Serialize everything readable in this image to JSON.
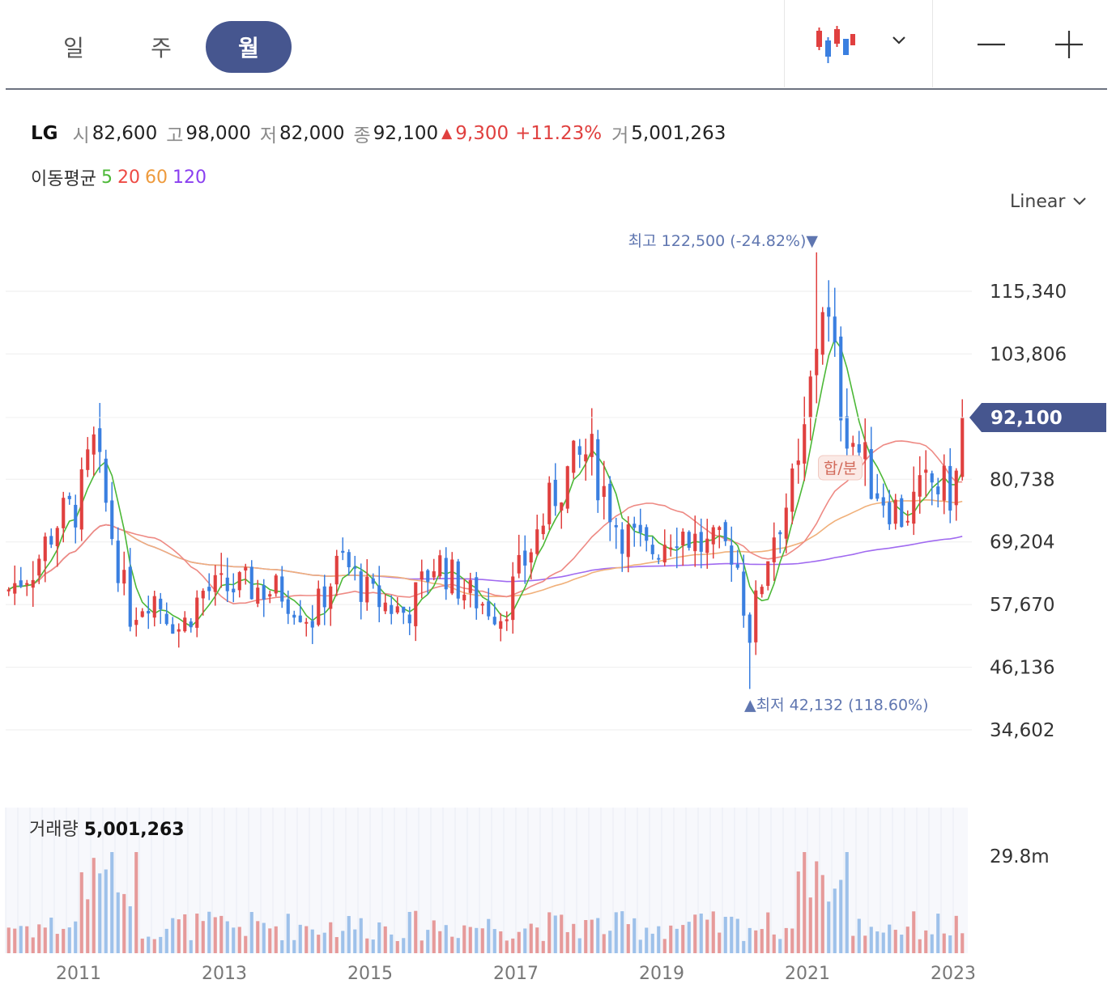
{
  "toolbar": {
    "tabs": [
      {
        "label": "일",
        "active": false
      },
      {
        "label": "주",
        "active": false
      },
      {
        "label": "월",
        "active": true
      }
    ],
    "chart_type_icon": "candlestick-icon",
    "zoom_out_icon": "minus-icon",
    "zoom_in_icon": "plus-icon"
  },
  "quote": {
    "name": "LG",
    "open_label": "시",
    "open": "82,600",
    "high_label": "고",
    "high": "98,000",
    "low_label": "저",
    "low": "82,000",
    "close_label": "종",
    "close": "92,100",
    "change_arrow": "▲",
    "change": "9,300",
    "change_pct": "+11.23%",
    "volume_label": "거",
    "volume": "5,001,263"
  },
  "moving_average": {
    "label": "이동평균",
    "periods": [
      {
        "label": "5",
        "color": "#4cb837"
      },
      {
        "label": "20",
        "color": "#ee4a44"
      },
      {
        "label": "60",
        "color": "#ee9a3c"
      },
      {
        "label": "120",
        "color": "#8a3ff0"
      }
    ]
  },
  "scale_selector": {
    "label": "Linear"
  },
  "colors": {
    "up": "#e0403f",
    "down": "#3a7fe0",
    "accent": "#46568f"
  },
  "chart_data": {
    "type": "candlestick",
    "y_ticks": [
      34602,
      46136,
      57670,
      69204,
      80738,
      103806,
      115340
    ],
    "y_tick_labels": [
      "34,602",
      "46,136",
      "57,670",
      "69,204",
      "80,738",
      "103,806",
      "115,340"
    ],
    "x_tick_labels": [
      "2011",
      "2013",
      "2015",
      "2017",
      "2019",
      "2021",
      "2023"
    ],
    "x_tick_years": [
      2011,
      2013,
      2015,
      2017,
      2019,
      2021,
      2023
    ],
    "current_price": 92100,
    "current_price_label": "92,100",
    "high_marker": {
      "label": "최고",
      "value_text": "122,500 (-24.82%)",
      "value": 122500,
      "date": "2021-02"
    },
    "low_marker": {
      "label": "최저",
      "value_text": "42,132 (118.60%)",
      "value": 42132,
      "date": "2020-03"
    },
    "event_badge": {
      "label": "합/분",
      "date": "2021-05"
    },
    "volume_label": "거래량",
    "volume_value": "5,001,263",
    "volume_axis_label": "29.8m",
    "price_anchors": [
      {
        "t": 2010.0,
        "p": 60000
      },
      {
        "t": 2010.4,
        "p": 65000
      },
      {
        "t": 2010.7,
        "p": 73000
      },
      {
        "t": 2011.0,
        "p": 76000
      },
      {
        "t": 2011.2,
        "p": 87000
      },
      {
        "t": 2011.5,
        "p": 68000
      },
      {
        "t": 2011.7,
        "p": 56000
      },
      {
        "t": 2012.0,
        "p": 60000
      },
      {
        "t": 2012.4,
        "p": 53000
      },
      {
        "t": 2012.7,
        "p": 60000
      },
      {
        "t": 2013.3,
        "p": 61000
      },
      {
        "t": 2013.8,
        "p": 60000
      },
      {
        "t": 2014.2,
        "p": 55000
      },
      {
        "t": 2014.6,
        "p": 66000
      },
      {
        "t": 2015.0,
        "p": 59000
      },
      {
        "t": 2015.5,
        "p": 56000
      },
      {
        "t": 2015.9,
        "p": 66000
      },
      {
        "t": 2016.3,
        "p": 60000
      },
      {
        "t": 2016.8,
        "p": 56000
      },
      {
        "t": 2017.2,
        "p": 68000
      },
      {
        "t": 2017.6,
        "p": 80000
      },
      {
        "t": 2018.0,
        "p": 86000
      },
      {
        "t": 2018.4,
        "p": 72000
      },
      {
        "t": 2018.8,
        "p": 67000
      },
      {
        "t": 2019.2,
        "p": 72000
      },
      {
        "t": 2019.6,
        "p": 68000
      },
      {
        "t": 2020.0,
        "p": 68000
      },
      {
        "t": 2020.2,
        "p": 52000
      },
      {
        "t": 2020.5,
        "p": 70000
      },
      {
        "t": 2020.9,
        "p": 82000
      },
      {
        "t": 2021.2,
        "p": 115000
      },
      {
        "t": 2021.5,
        "p": 92000
      },
      {
        "t": 2021.9,
        "p": 80000
      },
      {
        "t": 2022.3,
        "p": 74000
      },
      {
        "t": 2022.7,
        "p": 80000
      },
      {
        "t": 2023.0,
        "p": 78000
      },
      {
        "t": 2023.2,
        "p": 92100
      }
    ],
    "ma_lines": [
      {
        "period": "5",
        "color": "#4cb837"
      },
      {
        "period": "20",
        "color": "#ee8a84"
      },
      {
        "period": "60",
        "color": "#f0b07a"
      },
      {
        "period": "120",
        "color": "#a06af0"
      }
    ]
  }
}
